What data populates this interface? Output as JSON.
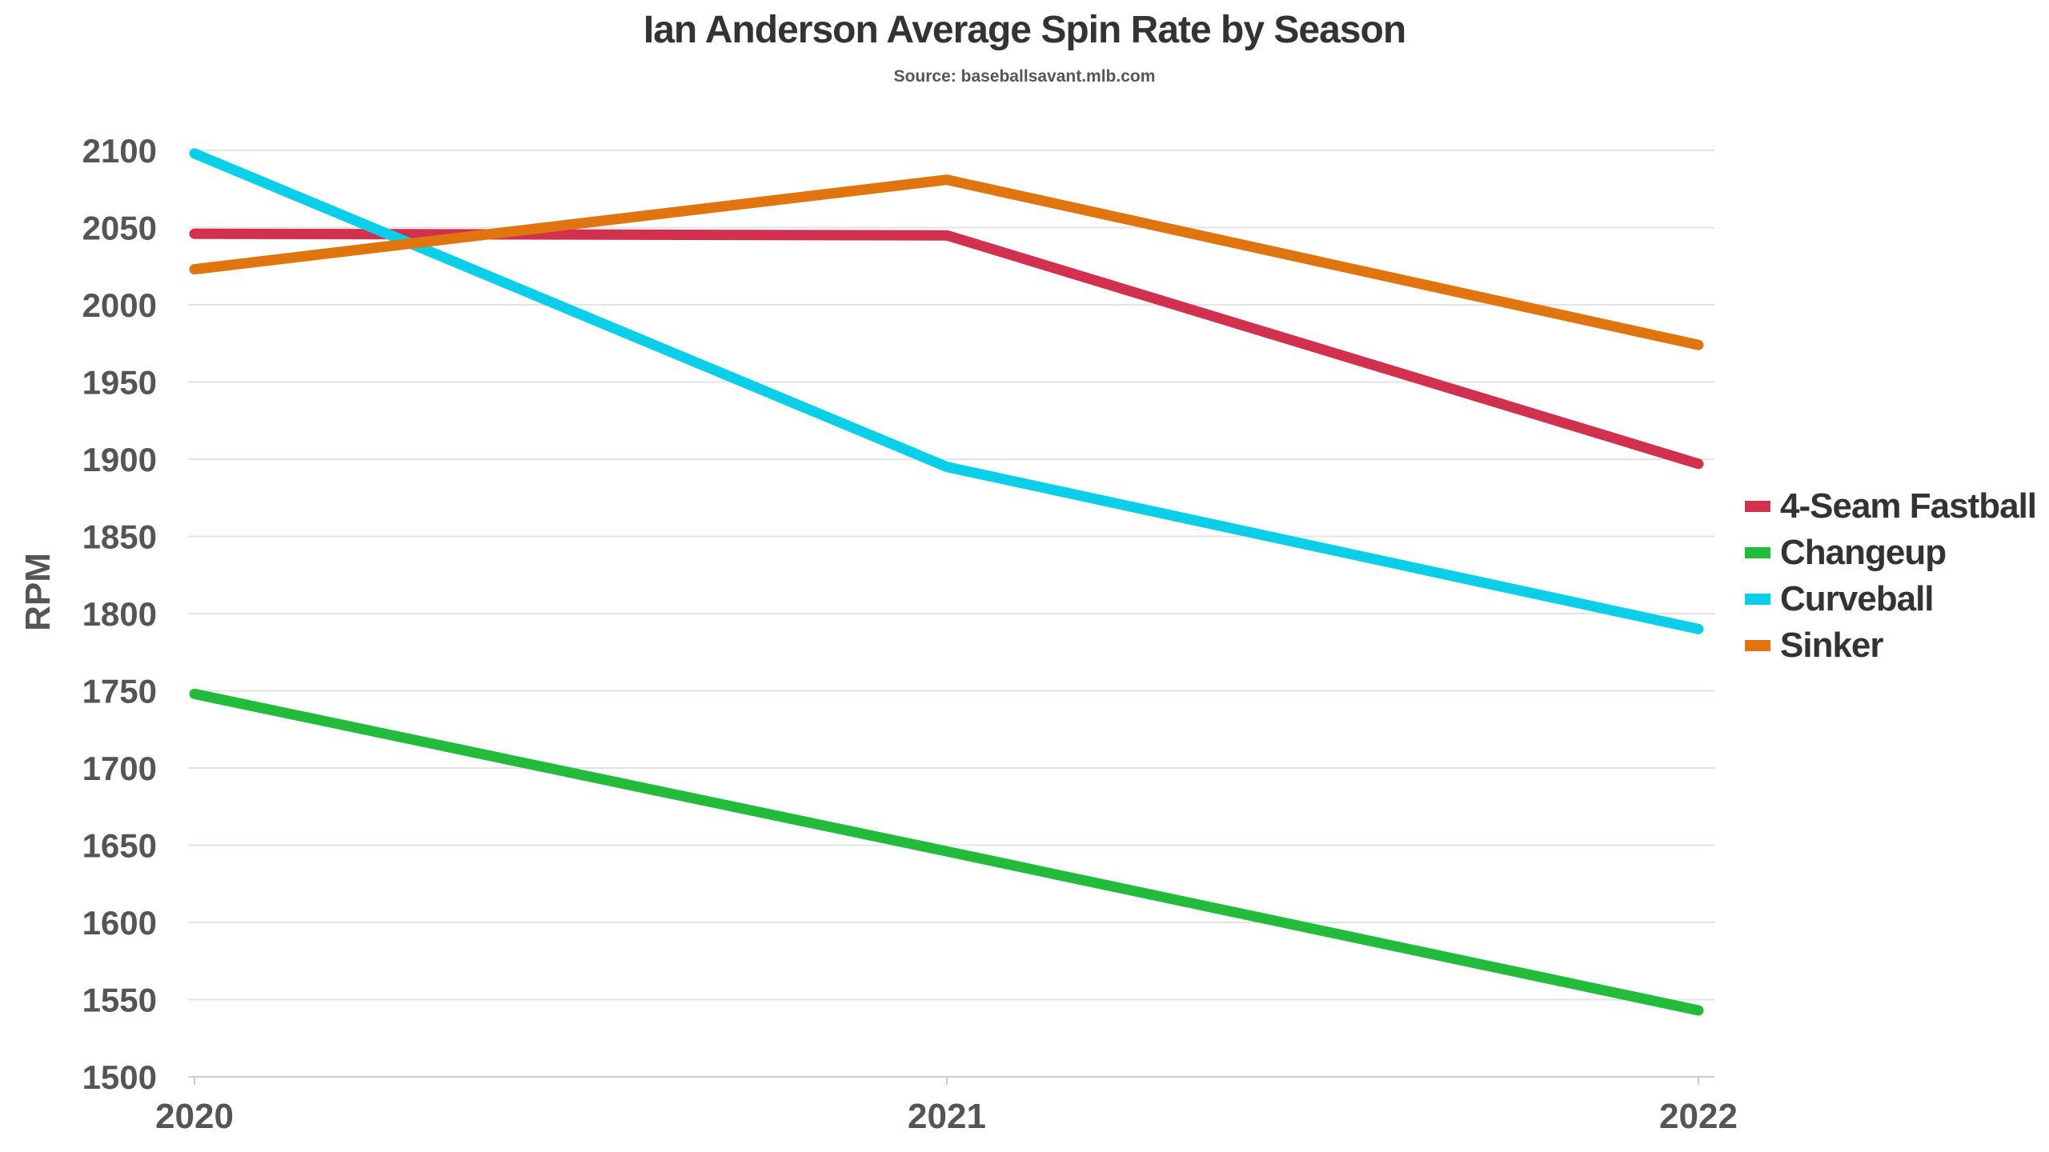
{
  "chart_data": {
    "type": "line",
    "title": "Ian Anderson Average Spin Rate by Season",
    "subtitle": "Source: baseballsavant.mlb.com",
    "xlabel": "",
    "ylabel": "RPM",
    "x": [
      "2020",
      "2021",
      "2022"
    ],
    "ylim": [
      1500,
      2100
    ],
    "yticks": [
      "1500",
      "1550",
      "1600",
      "1650",
      "1700",
      "1750",
      "1800",
      "1850",
      "1900",
      "1950",
      "2000",
      "2050",
      "2100"
    ],
    "grid": true,
    "legend_position": "right",
    "series": [
      {
        "name": "4-Seam Fastball",
        "color": "#d1304f",
        "values": [
          2046,
          2045,
          1897
        ]
      },
      {
        "name": "Changeup",
        "color": "#22bb3b",
        "values": [
          1748,
          1646,
          1543
        ]
      },
      {
        "name": "Curveball",
        "color": "#0bcfe8",
        "values": [
          2098,
          1895,
          1790
        ]
      },
      {
        "name": "Sinker",
        "color": "#e0740f",
        "values": [
          2023,
          2081,
          1974
        ]
      }
    ]
  }
}
